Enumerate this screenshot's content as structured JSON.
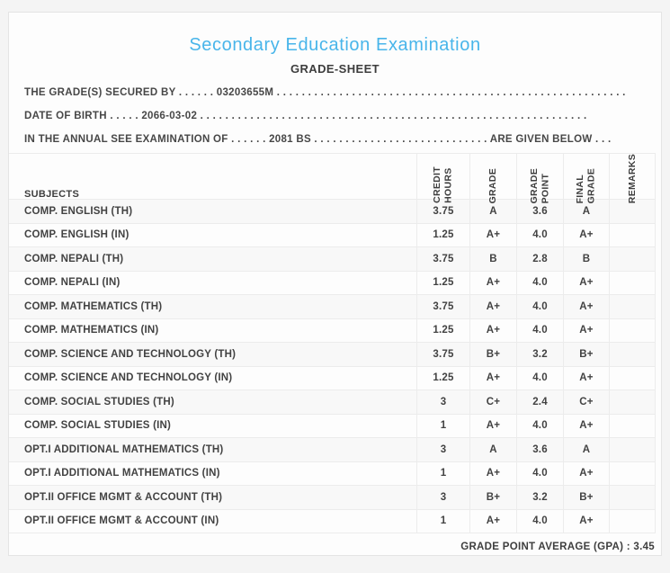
{
  "page": {
    "title": "Secondary Education Examination",
    "subtitle": "GRADE-SHEET"
  },
  "colors": {
    "accent": "#48b5ea",
    "text": "#3f3f3f",
    "border": "#ececec",
    "stripe": "#f8f8f8",
    "page_background": "#f4f4f4",
    "card_background": "#fdfdfd"
  },
  "info_lines": [
    {
      "label": "THE GRADE(S) SECURED BY",
      "pre_dots": " . . . . . . ",
      "value": "03203655M",
      "post_dots": " . . . . . . . . . . . . . . . . . . . . . . . . . . . . . . . . . . . . . . . . . . . . . . . . . . . . . . . .",
      "suffix": ""
    },
    {
      "label": "DATE OF BIRTH",
      "pre_dots": " . . . . . ",
      "value": "2066-03-02",
      "post_dots": " . . . . . . . . . . . . . . . . . . . . . . . . . . . . . . . . . . . . . . . . . . . . . . . . . . . . . . . . . . . . . .",
      "suffix": ""
    },
    {
      "label": "IN THE ANNUAL SEE EXAMINATION OF",
      "pre_dots": " . . . . . . ",
      "value": "2081 BS",
      "post_dots": " . . . . . . . . . . . . . . . . . . . . . . . . . . . . ",
      "suffix": "ARE GIVEN BELOW . . ."
    }
  ],
  "table": {
    "headers": {
      "subjects": "SUBJECTS",
      "credit_hours": "CREDIT\nHOURS",
      "grade": "GRADE",
      "grade_point": "GRADE\nPOINT",
      "final_grade": "FINAL\nGRADE",
      "remarks": "REMARKS"
    },
    "rows": [
      {
        "subject": "COMP. ENGLISH (TH)",
        "credit_hours": "3.75",
        "grade": "A",
        "grade_point": "3.6",
        "final_grade": "A",
        "remarks": ""
      },
      {
        "subject": "COMP. ENGLISH (IN)",
        "credit_hours": "1.25",
        "grade": "A+",
        "grade_point": "4.0",
        "final_grade": "A+",
        "remarks": ""
      },
      {
        "subject": "COMP. NEPALI (TH)",
        "credit_hours": "3.75",
        "grade": "B",
        "grade_point": "2.8",
        "final_grade": "B",
        "remarks": ""
      },
      {
        "subject": "COMP. NEPALI (IN)",
        "credit_hours": "1.25",
        "grade": "A+",
        "grade_point": "4.0",
        "final_grade": "A+",
        "remarks": ""
      },
      {
        "subject": "COMP. MATHEMATICS (TH)",
        "credit_hours": "3.75",
        "grade": "A+",
        "grade_point": "4.0",
        "final_grade": "A+",
        "remarks": ""
      },
      {
        "subject": "COMP. MATHEMATICS (IN)",
        "credit_hours": "1.25",
        "grade": "A+",
        "grade_point": "4.0",
        "final_grade": "A+",
        "remarks": ""
      },
      {
        "subject": "COMP. SCIENCE AND TECHNOLOGY (TH)",
        "credit_hours": "3.75",
        "grade": "B+",
        "grade_point": "3.2",
        "final_grade": "B+",
        "remarks": ""
      },
      {
        "subject": "COMP. SCIENCE AND TECHNOLOGY (IN)",
        "credit_hours": "1.25",
        "grade": "A+",
        "grade_point": "4.0",
        "final_grade": "A+",
        "remarks": ""
      },
      {
        "subject": "COMP. SOCIAL STUDIES (TH)",
        "credit_hours": "3",
        "grade": "C+",
        "grade_point": "2.4",
        "final_grade": "C+",
        "remarks": ""
      },
      {
        "subject": "COMP. SOCIAL STUDIES (IN)",
        "credit_hours": "1",
        "grade": "A+",
        "grade_point": "4.0",
        "final_grade": "A+",
        "remarks": ""
      },
      {
        "subject": "OPT.I ADDITIONAL MATHEMATICS (TH)",
        "credit_hours": "3",
        "grade": "A",
        "grade_point": "3.6",
        "final_grade": "A",
        "remarks": ""
      },
      {
        "subject": "OPT.I ADDITIONAL MATHEMATICS (IN)",
        "credit_hours": "1",
        "grade": "A+",
        "grade_point": "4.0",
        "final_grade": "A+",
        "remarks": ""
      },
      {
        "subject": "OPT.II OFFICE MGMT & ACCOUNT (TH)",
        "credit_hours": "3",
        "grade": "B+",
        "grade_point": "3.2",
        "final_grade": "B+",
        "remarks": ""
      },
      {
        "subject": "OPT.II OFFICE MGMT & ACCOUNT (IN)",
        "credit_hours": "1",
        "grade": "A+",
        "grade_point": "4.0",
        "final_grade": "A+",
        "remarks": ""
      }
    ]
  },
  "footer": {
    "gpa_label": "GRADE POINT AVERAGE (GPA) : ",
    "gpa_value": "3.45"
  }
}
